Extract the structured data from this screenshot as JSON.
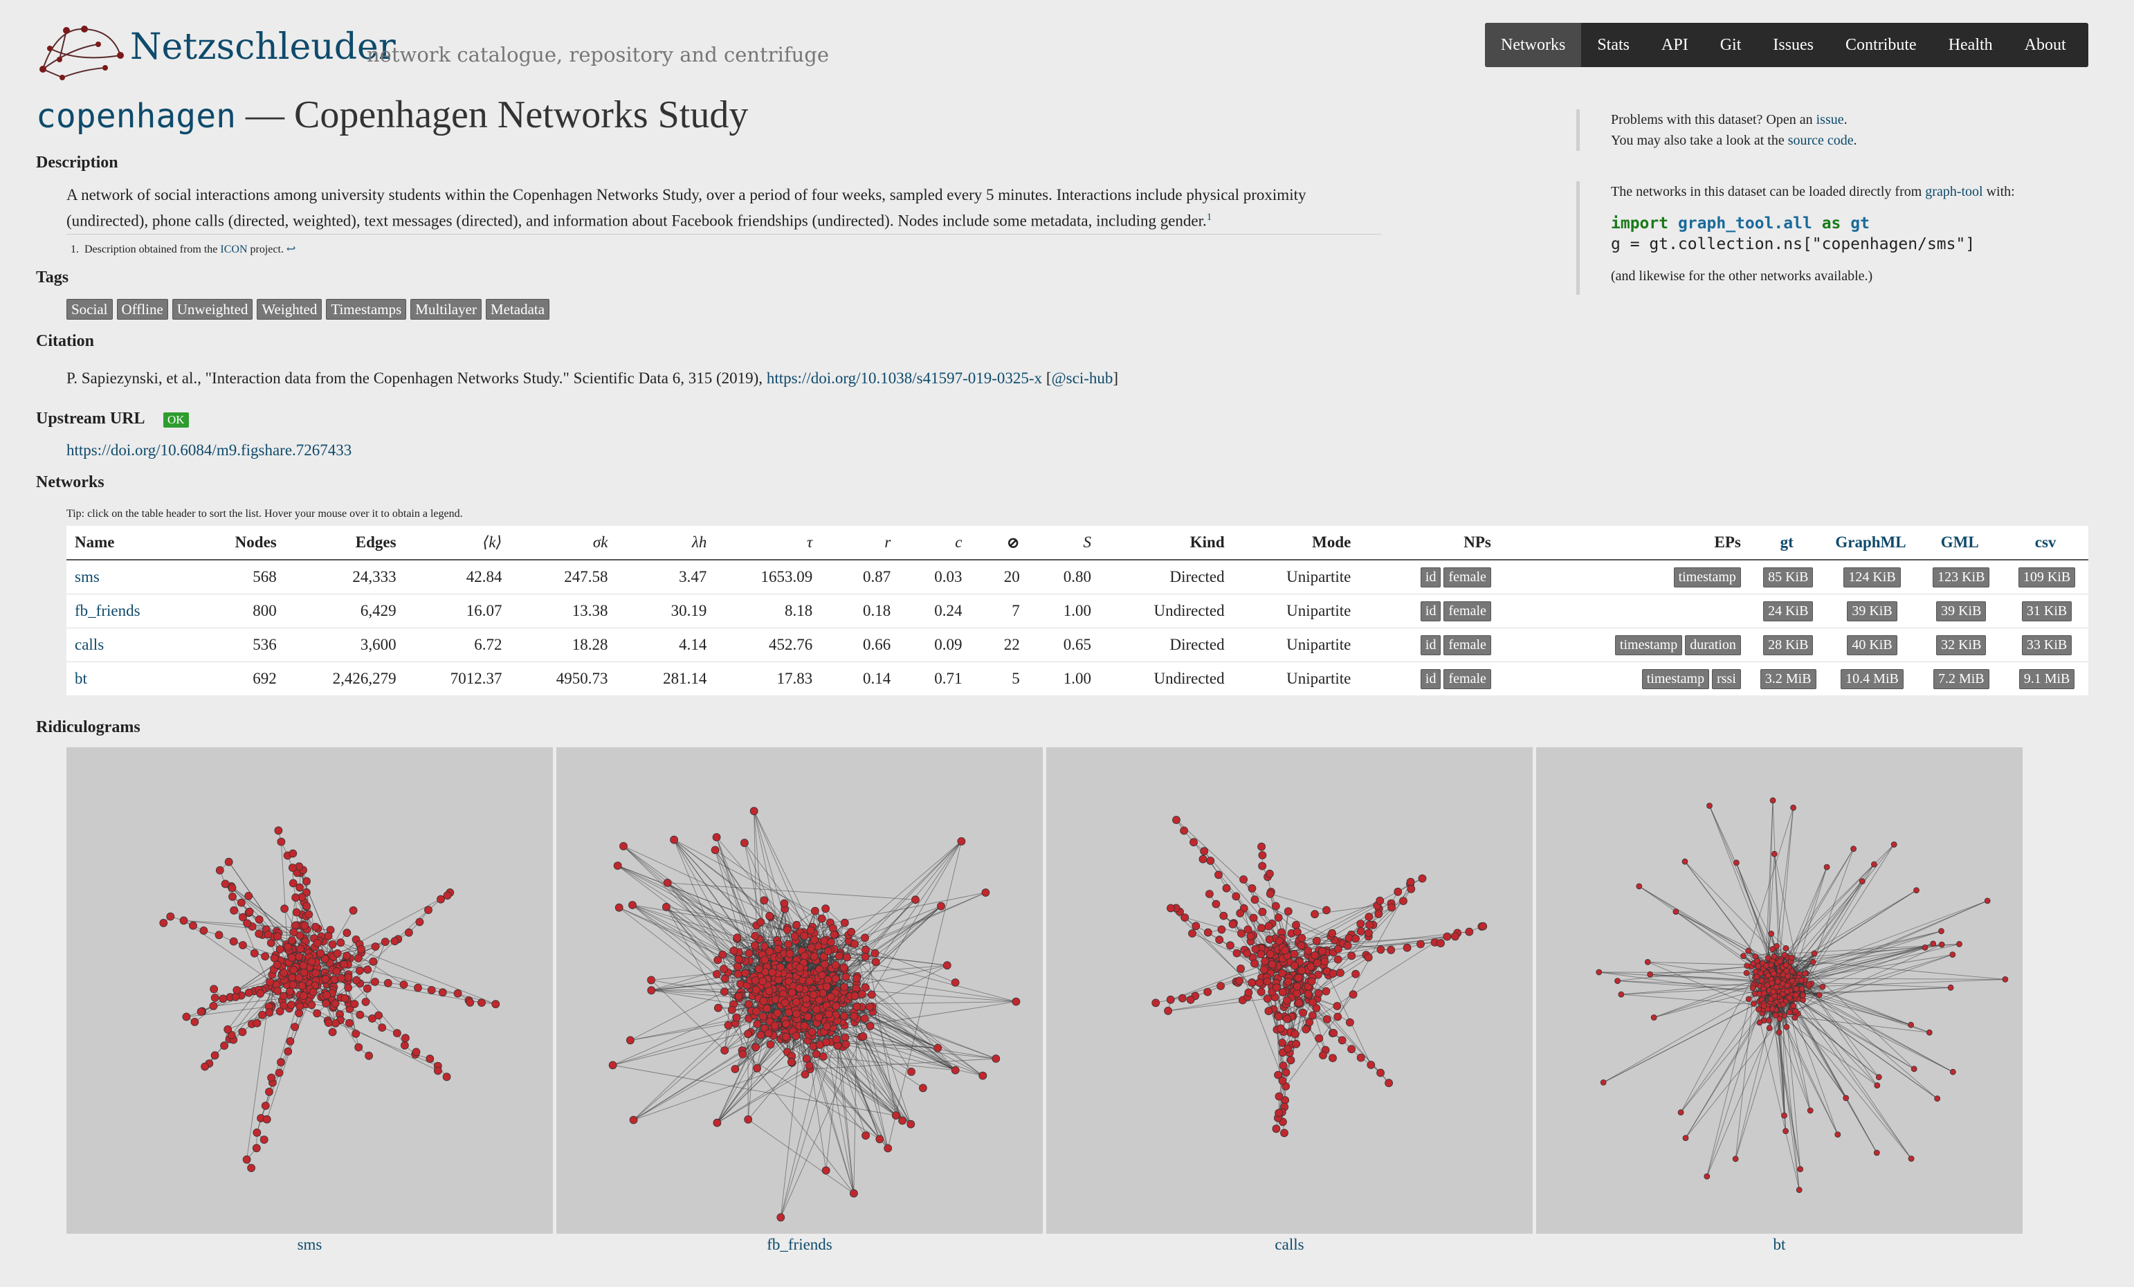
{
  "header": {
    "brand": "Netzschleuder",
    "tagline": "network catalogue, repository and centrifuge",
    "nav": [
      "Networks",
      "Stats",
      "API",
      "Git",
      "Issues",
      "Contribute",
      "Health",
      "About"
    ]
  },
  "page": {
    "title_code": "copenhagen",
    "title_rest": " — Copenhagen Networks Study"
  },
  "description": {
    "heading": "Description",
    "text": "A network of social interactions among university students within the Copenhagen Networks Study, over a period of four weeks, sampled every 5 minutes. Interactions include physical proximity (undirected), phone calls (directed, weighted), text messages (directed), and information about Facebook friendships (undirected). Nodes include some metadata, including gender.",
    "footnote_mark": "1",
    "footnote_num": "1.",
    "footnote_pre": "Description obtained from the ",
    "footnote_link": "ICON",
    "footnote_post": " project. ",
    "footnote_back": "↩"
  },
  "tags": {
    "heading": "Tags",
    "items": [
      "Social",
      "Offline",
      "Unweighted",
      "Weighted",
      "Timestamps",
      "Multilayer",
      "Metadata"
    ]
  },
  "citation": {
    "heading": "Citation",
    "text": "P. Sapiezynski, et al., \"Interaction data from the Copenhagen Networks Study.\" Scientific Data 6, 315 (2019), ",
    "doi": "https://doi.org/10.1038/s41597-019-0325-x",
    "open": " [",
    "scihub": "@sci-hub",
    "close": "]"
  },
  "upstream": {
    "heading": "Upstream URL",
    "status": "OK",
    "url": "https://doi.org/10.6084/m9.figshare.7267433"
  },
  "networks": {
    "heading": "Networks",
    "tip": "Tip: click on the table header to sort the list. Hover your mouse over it to obtain a legend.",
    "columns": [
      "Name",
      "Nodes",
      "Edges",
      "⟨k⟩",
      "σk",
      "λh",
      "τ",
      "r",
      "c",
      "⊘",
      "S",
      "Kind",
      "Mode",
      "NPs",
      "EPs",
      "gt",
      "GraphML",
      "GML",
      "csv"
    ],
    "rows": [
      {
        "name": "sms",
        "nodes": "568",
        "edges": "24,333",
        "k": "42.84",
        "sigma": "247.58",
        "lambda": "3.47",
        "tau": "1653.09",
        "r": "0.87",
        "c": "0.03",
        "diam": "20",
        "S": "0.80",
        "kind": "Directed",
        "mode": "Unipartite",
        "nps": [
          "id",
          "female"
        ],
        "eps": [
          "timestamp"
        ],
        "gt": "85 KiB",
        "graphml": "124 KiB",
        "gml": "123 KiB",
        "csv": "109 KiB"
      },
      {
        "name": "fb_friends",
        "nodes": "800",
        "edges": "6,429",
        "k": "16.07",
        "sigma": "13.38",
        "lambda": "30.19",
        "tau": "8.18",
        "r": "0.18",
        "c": "0.24",
        "diam": "7",
        "S": "1.00",
        "kind": "Undirected",
        "mode": "Unipartite",
        "nps": [
          "id",
          "female"
        ],
        "eps": [],
        "gt": "24 KiB",
        "graphml": "39 KiB",
        "gml": "39 KiB",
        "csv": "31 KiB"
      },
      {
        "name": "calls",
        "nodes": "536",
        "edges": "3,600",
        "k": "6.72",
        "sigma": "18.28",
        "lambda": "4.14",
        "tau": "452.76",
        "r": "0.66",
        "c": "0.09",
        "diam": "22",
        "S": "0.65",
        "kind": "Directed",
        "mode": "Unipartite",
        "nps": [
          "id",
          "female"
        ],
        "eps": [
          "timestamp",
          "duration"
        ],
        "gt": "28 KiB",
        "graphml": "40 KiB",
        "gml": "32 KiB",
        "csv": "33 KiB"
      },
      {
        "name": "bt",
        "nodes": "692",
        "edges": "2,426,279",
        "k": "7012.37",
        "sigma": "4950.73",
        "lambda": "281.14",
        "tau": "17.83",
        "r": "0.14",
        "c": "0.71",
        "diam": "5",
        "S": "1.00",
        "kind": "Undirected",
        "mode": "Unipartite",
        "nps": [
          "id",
          "female"
        ],
        "eps": [
          "timestamp",
          "rssi"
        ],
        "gt": "3.2 MiB",
        "graphml": "10.4 MiB",
        "gml": "7.2 MiB",
        "csv": "9.1 MiB"
      }
    ]
  },
  "sidebar": {
    "problems_pre": "Problems with this dataset? Open an ",
    "problems_link": "issue",
    "problems_post": ".",
    "source_pre": "You may also take a look at the ",
    "source_link": "source code",
    "source_post": ".",
    "load_pre": "The networks in this dataset can be loaded directly from ",
    "load_link": "graph-tool",
    "load_post": " with:",
    "code_import": "import",
    "code_module": "graph_tool.all",
    "code_as": "as",
    "code_alias": "gt",
    "code_line2": "g = gt.collection.ns[\"copenhagen/sms\"]",
    "likewise": "(and likewise for the other networks available.)"
  },
  "ridiculograms": {
    "heading": "Ridiculograms",
    "labels": [
      "sms",
      "fb_friends",
      "calls",
      "bt"
    ]
  },
  "colors": {
    "link": "#0e4a6b",
    "node": "#c0282e",
    "nav_bg": "#2a2a2a",
    "ok": "#2e9d2e",
    "badge": "#777777"
  }
}
